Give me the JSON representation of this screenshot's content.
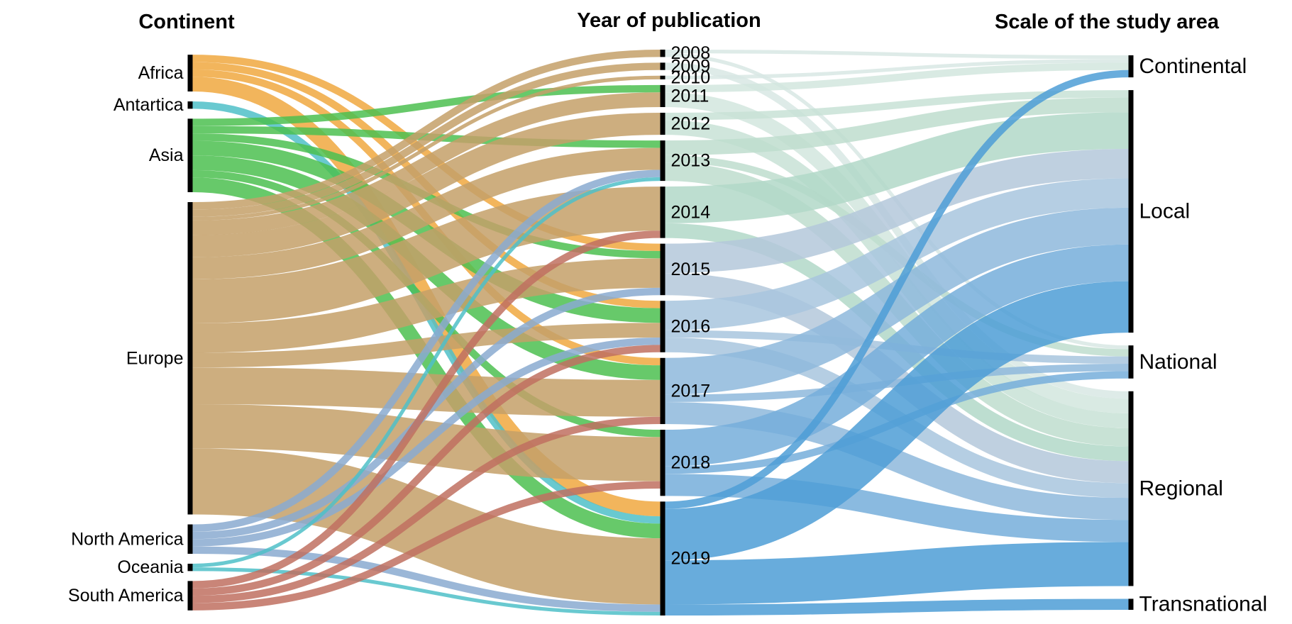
{
  "titles": {
    "left": "Continent",
    "middle": "Year of publication",
    "right": "Scale of the study area"
  },
  "continents": [
    "Africa",
    "Antartica",
    "Asia",
    "Europe",
    "North America",
    "Oceania",
    "South America"
  ],
  "years": [
    "2008",
    "2009",
    "2010",
    "2011",
    "2012",
    "2013",
    "2014",
    "2015",
    "2016",
    "2017",
    "2018",
    "2019"
  ],
  "scales": [
    "Continental",
    "Local",
    "National",
    "Regional",
    "Transnational"
  ],
  "colors": {
    "Africa": "#F0A840",
    "Antartica": "#4FC0C8",
    "Asia": "#4CC050",
    "Europe": "#C4A068",
    "North America": "#8AAAD0",
    "Oceania": "#4FC0C8",
    "South America": "#C07060",
    "y2008": "#D8E8E4",
    "y2009": "#D8E8E4",
    "y2010": "#D8E8E4",
    "y2011": "#D2E6DE",
    "y2012": "#C8E2D6",
    "y2013": "#BEDDCE",
    "y2014": "#B2D8C8",
    "y2015": "#B4C8DA",
    "y2016": "#A8C6DE",
    "y2017": "#8EB8DC",
    "y2018": "#76AEDA",
    "y2019": "#4E9ED6",
    "node": "#000000"
  },
  "chart_data": {
    "type": "sankey",
    "columns": [
      "Continent",
      "Year of publication",
      "Scale of the study area"
    ],
    "units": "approximate number of publications (estimated from flow widths)",
    "links_continent_to_year": [
      {
        "source": "Africa",
        "target": "2015",
        "value": 1
      },
      {
        "source": "Africa",
        "target": "2016",
        "value": 1
      },
      {
        "source": "Africa",
        "target": "2017",
        "value": 1
      },
      {
        "source": "Africa",
        "target": "2019",
        "value": 2
      },
      {
        "source": "Antartica",
        "target": "2019",
        "value": 1
      },
      {
        "source": "Asia",
        "target": "2011",
        "value": 1
      },
      {
        "source": "Asia",
        "target": "2013",
        "value": 1
      },
      {
        "source": "Asia",
        "target": "2015",
        "value": 1
      },
      {
        "source": "Asia",
        "target": "2016",
        "value": 2
      },
      {
        "source": "Asia",
        "target": "2017",
        "value": 2
      },
      {
        "source": "Asia",
        "target": "2018",
        "value": 1
      },
      {
        "source": "Asia",
        "target": "2019",
        "value": 2
      },
      {
        "source": "Europe",
        "target": "2008",
        "value": 1
      },
      {
        "source": "Europe",
        "target": "2009",
        "value": 1
      },
      {
        "source": "Europe",
        "target": "2010",
        "value": 0.5
      },
      {
        "source": "Europe",
        "target": "2011",
        "value": 2
      },
      {
        "source": "Europe",
        "target": "2012",
        "value": 3
      },
      {
        "source": "Europe",
        "target": "2013",
        "value": 3
      },
      {
        "source": "Europe",
        "target": "2014",
        "value": 6
      },
      {
        "source": "Europe",
        "target": "2015",
        "value": 4
      },
      {
        "source": "Europe",
        "target": "2016",
        "value": 2
      },
      {
        "source": "Europe",
        "target": "2017",
        "value": 5
      },
      {
        "source": "Europe",
        "target": "2018",
        "value": 6
      },
      {
        "source": "Europe",
        "target": "2019",
        "value": 9
      },
      {
        "source": "North America",
        "target": "2013",
        "value": 1
      },
      {
        "source": "North America",
        "target": "2015",
        "value": 1
      },
      {
        "source": "North America",
        "target": "2016",
        "value": 1
      },
      {
        "source": "North America",
        "target": "2019",
        "value": 1
      },
      {
        "source": "Oceania",
        "target": "2013",
        "value": 0.5
      },
      {
        "source": "Oceania",
        "target": "2019",
        "value": 0.5
      },
      {
        "source": "South America",
        "target": "2014",
        "value": 1
      },
      {
        "source": "South America",
        "target": "2016",
        "value": 1
      },
      {
        "source": "South America",
        "target": "2017",
        "value": 1
      },
      {
        "source": "South America",
        "target": "2018",
        "value": 1
      }
    ],
    "links_year_to_scale": [
      {
        "source": "2008",
        "target": "Continental",
        "value": 0.5
      },
      {
        "source": "2008",
        "target": "National",
        "value": 0.5
      },
      {
        "source": "2009",
        "target": "Regional",
        "value": 1
      },
      {
        "source": "2010",
        "target": "Continental",
        "value": 0.5
      },
      {
        "source": "2011",
        "target": "Continental",
        "value": 1
      },
      {
        "source": "2011",
        "target": "Regional",
        "value": 2
      },
      {
        "source": "2012",
        "target": "Local",
        "value": 1
      },
      {
        "source": "2012",
        "target": "Regional",
        "value": 2
      },
      {
        "source": "2013",
        "target": "Local",
        "value": 2
      },
      {
        "source": "2013",
        "target": "National",
        "value": 1
      },
      {
        "source": "2013",
        "target": "Regional",
        "value": 2.5
      },
      {
        "source": "2014",
        "target": "Local",
        "value": 5
      },
      {
        "source": "2014",
        "target": "Regional",
        "value": 2
      },
      {
        "source": "2015",
        "target": "Local",
        "value": 4
      },
      {
        "source": "2015",
        "target": "Regional",
        "value": 3
      },
      {
        "source": "2016",
        "target": "Local",
        "value": 4
      },
      {
        "source": "2016",
        "target": "National",
        "value": 1
      },
      {
        "source": "2016",
        "target": "Regional",
        "value": 2
      },
      {
        "source": "2017",
        "target": "Local",
        "value": 5
      },
      {
        "source": "2017",
        "target": "National",
        "value": 1
      },
      {
        "source": "2017",
        "target": "Regional",
        "value": 3
      },
      {
        "source": "2018",
        "target": "Local",
        "value": 5
      },
      {
        "source": "2018",
        "target": "National",
        "value": 1
      },
      {
        "source": "2018",
        "target": "Regional",
        "value": 3
      },
      {
        "source": "2019",
        "target": "Continental",
        "value": 1
      },
      {
        "source": "2019",
        "target": "Local",
        "value": 7
      },
      {
        "source": "2019",
        "target": "Regional",
        "value": 6
      },
      {
        "source": "2019",
        "target": "Transnational",
        "value": 1.5
      }
    ]
  }
}
